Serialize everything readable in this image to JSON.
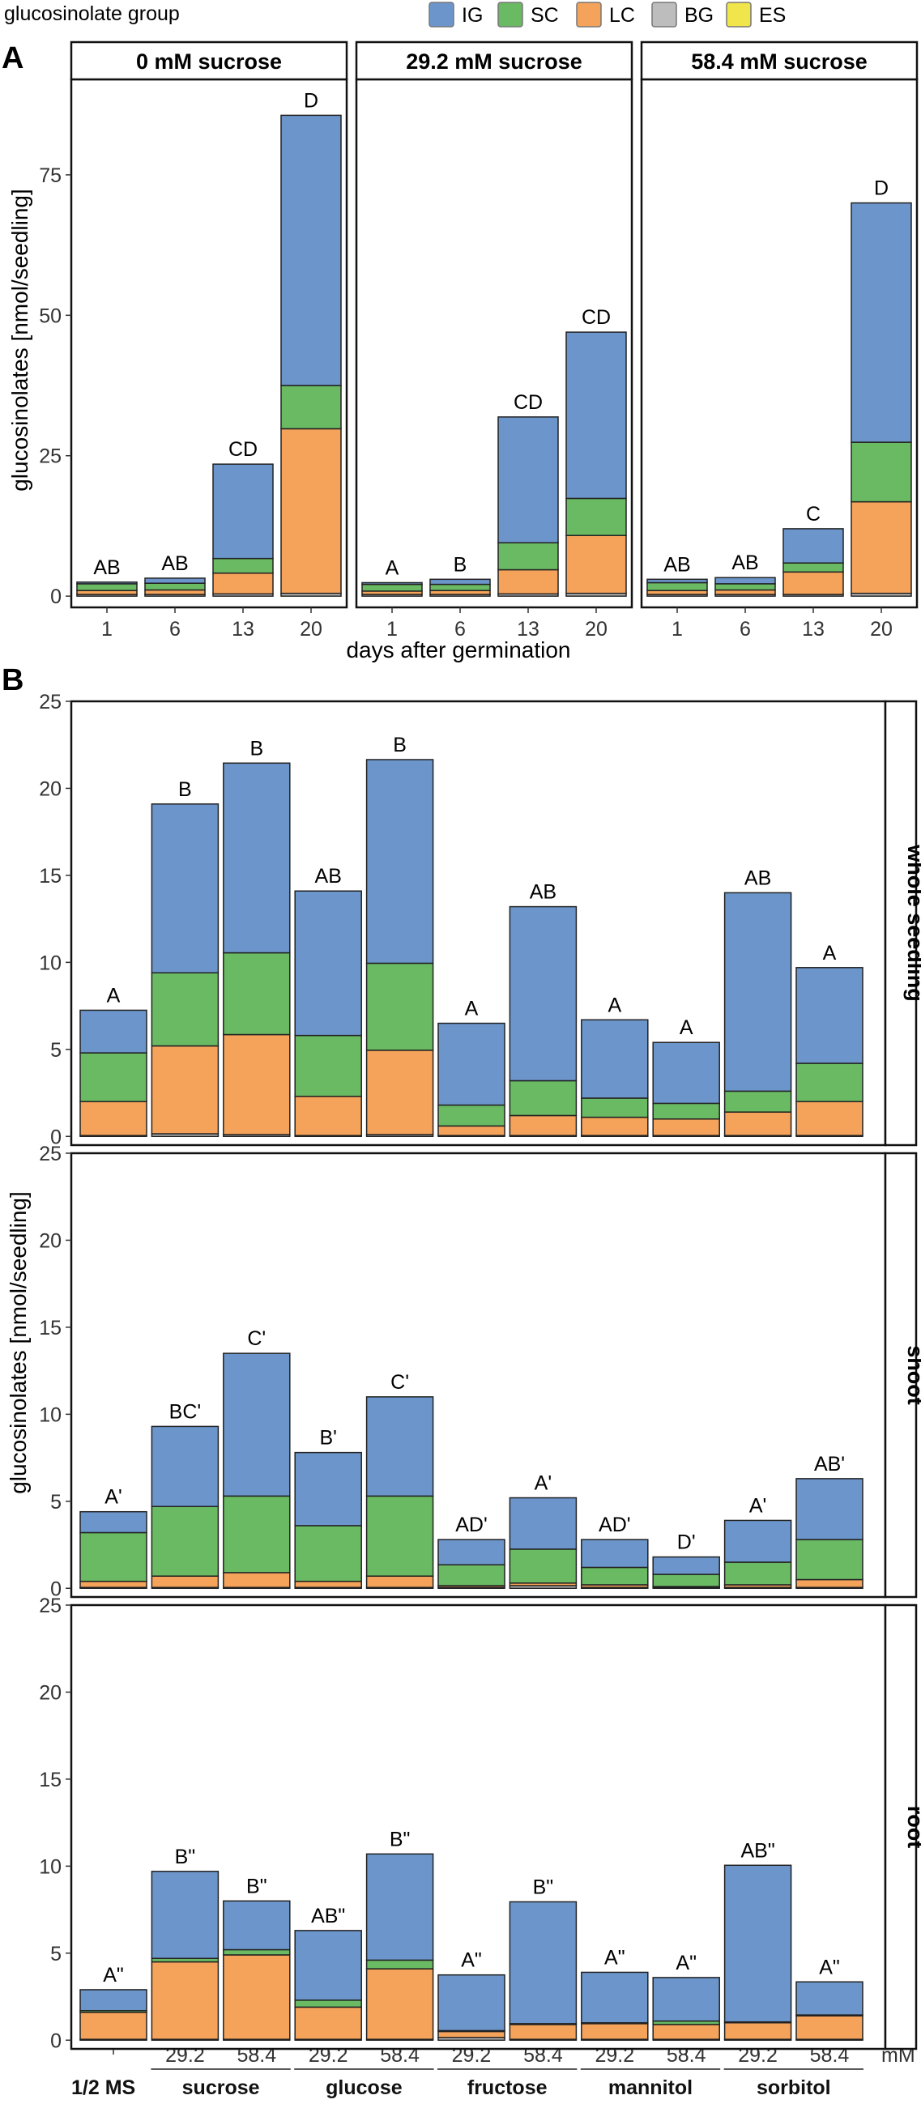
{
  "legend": {
    "title": "glucosinolate group",
    "items": [
      {
        "key": "IG",
        "label": "IG",
        "color": "#6C96CB"
      },
      {
        "key": "SC",
        "label": "SC",
        "color": "#6ABA63"
      },
      {
        "key": "LC",
        "label": "LC",
        "color": "#F5A35A"
      },
      {
        "key": "BG",
        "label": "BG",
        "color": "#BDBDBD"
      },
      {
        "key": "ES",
        "label": "ES",
        "color": "#F0E54A"
      }
    ]
  },
  "chart_data": [
    {
      "id": "A",
      "type": "bar",
      "stacked": true,
      "panel_label": "A",
      "ylabel": "glucosinolates [nmol/seedling]",
      "xlabel": "days after germination",
      "ylim": [
        -2,
        92
      ],
      "yticks": [
        0,
        25,
        50,
        75
      ],
      "facets": [
        {
          "title": "0 mM sucrose",
          "categories": [
            "1",
            "6",
            "13",
            "20"
          ],
          "series": [
            {
              "name": "BG",
              "values": [
                0.3,
                0.3,
                0.4,
                0.5
              ]
            },
            {
              "name": "LC",
              "values": [
                0.7,
                0.8,
                3.7,
                29.3
              ]
            },
            {
              "name": "SC",
              "values": [
                1.2,
                1.2,
                2.6,
                7.7
              ]
            },
            {
              "name": "IG",
              "values": [
                0.3,
                0.9,
                16.8,
                48.1
              ]
            }
          ],
          "letters": [
            "AB",
            "AB",
            "CD",
            "D"
          ]
        },
        {
          "title": "29.2 mM sucrose",
          "categories": [
            "1",
            "6",
            "13",
            "20"
          ],
          "series": [
            {
              "name": "BG",
              "values": [
                0.3,
                0.3,
                0.4,
                0.5
              ]
            },
            {
              "name": "LC",
              "values": [
                0.6,
                0.7,
                4.3,
                10.3
              ]
            },
            {
              "name": "SC",
              "values": [
                1.2,
                1.1,
                4.8,
                6.6
              ]
            },
            {
              "name": "IG",
              "values": [
                0.3,
                0.9,
                22.4,
                29.6
              ]
            }
          ],
          "letters": [
            "A",
            "B",
            "CD",
            "CD"
          ]
        },
        {
          "title": "58.4 mM sucrose",
          "categories": [
            "1",
            "6",
            "13",
            "20"
          ],
          "series": [
            {
              "name": "BG",
              "values": [
                0.3,
                0.3,
                0.3,
                0.5
              ]
            },
            {
              "name": "LC",
              "values": [
                0.7,
                0.8,
                4.0,
                16.3
              ]
            },
            {
              "name": "SC",
              "values": [
                1.4,
                1.1,
                1.6,
                10.6
              ]
            },
            {
              "name": "IG",
              "values": [
                0.6,
                1.1,
                6.1,
                42.6
              ]
            }
          ],
          "letters": [
            "AB",
            "AB",
            "C",
            "D"
          ]
        }
      ]
    },
    {
      "id": "B",
      "type": "bar",
      "stacked": true,
      "panel_label": "B",
      "ylabel": "glucosinolates [nmol/seedling]",
      "ylim": [
        -0.5,
        25
      ],
      "yticks": [
        0,
        5,
        10,
        15,
        20,
        25
      ],
      "categories": [
        "1/2 MS",
        "sucrose 29.2",
        "sucrose 58.4",
        "glucose 29.2",
        "glucose 58.4",
        "fructose 29.2",
        "fructose 58.4",
        "mannitol 29.2",
        "mannitol 58.4",
        "sorbitol 29.2",
        "sorbitol 58.4"
      ],
      "x_sublabels": [
        "",
        "29.2",
        "58.4",
        "29.2",
        "58.4",
        "29.2",
        "58.4",
        "29.2",
        "58.4",
        "29.2",
        "58.4"
      ],
      "x_unit": "mM",
      "x_groups": [
        "1/2 MS",
        "sucrose",
        "glucose",
        "fructose",
        "mannitol",
        "sorbitol"
      ],
      "facets": [
        {
          "title": "whole seedling",
          "series": [
            {
              "name": "BG",
              "values": [
                0.05,
                0.15,
                0.1,
                0.05,
                0.1,
                0.05,
                0.05,
                0.05,
                0.05,
                0.05,
                0.05
              ]
            },
            {
              "name": "LC",
              "values": [
                1.95,
                5.05,
                5.75,
                2.25,
                4.85,
                0.55,
                1.15,
                1.05,
                0.95,
                1.35,
                1.95
              ]
            },
            {
              "name": "SC",
              "values": [
                2.8,
                4.2,
                4.7,
                3.5,
                5.0,
                1.2,
                2.0,
                1.1,
                0.9,
                1.2,
                2.2
              ]
            },
            {
              "name": "IG",
              "values": [
                2.45,
                9.7,
                10.9,
                8.3,
                11.7,
                4.7,
                10.0,
                4.5,
                3.5,
                11.4,
                5.5
              ]
            }
          ],
          "letters": [
            "A",
            "B",
            "B",
            "AB",
            "B",
            "A",
            "AB",
            "A",
            "A",
            "AB",
            "A"
          ]
        },
        {
          "title": "shoot",
          "series": [
            {
              "name": "BG",
              "values": [
                0.05,
                0.05,
                0.05,
                0.05,
                0.05,
                0.05,
                0.15,
                0.05,
                0.05,
                0.05,
                0.05
              ]
            },
            {
              "name": "LC",
              "values": [
                0.35,
                0.65,
                0.85,
                0.35,
                0.65,
                0.1,
                0.15,
                0.15,
                0.05,
                0.15,
                0.45
              ]
            },
            {
              "name": "SC",
              "values": [
                2.8,
                4.0,
                4.4,
                3.2,
                4.6,
                1.2,
                1.95,
                1.0,
                0.7,
                1.3,
                2.3
              ]
            },
            {
              "name": "IG",
              "values": [
                1.2,
                4.6,
                8.2,
                4.2,
                5.7,
                1.45,
                2.95,
                1.6,
                1.0,
                2.4,
                3.5
              ]
            }
          ],
          "letters": [
            "A'",
            "BC'",
            "C'",
            "B'",
            "C'",
            "AD'",
            "A'",
            "AD'",
            "D'",
            "A'",
            "AB'"
          ]
        },
        {
          "title": "root",
          "series": [
            {
              "name": "BG",
              "values": [
                0.05,
                0.05,
                0.05,
                0.05,
                0.05,
                0.15,
                0.05,
                0.05,
                0.05,
                0.05,
                0.05
              ]
            },
            {
              "name": "LC",
              "values": [
                1.55,
                4.45,
                4.85,
                1.85,
                4.05,
                0.35,
                0.85,
                0.9,
                0.85,
                0.95,
                1.35
              ]
            },
            {
              "name": "SC",
              "values": [
                0.1,
                0.2,
                0.3,
                0.4,
                0.5,
                0.05,
                0.05,
                0.05,
                0.2,
                0.05,
                0.05
              ]
            },
            {
              "name": "IG",
              "values": [
                1.2,
                5.0,
                2.8,
                4.0,
                6.1,
                3.2,
                7.0,
                2.9,
                2.5,
                9.0,
                1.9
              ]
            }
          ],
          "letters": [
            "A\"",
            "B\"",
            "B\"",
            "AB\"",
            "B\"",
            "A\"",
            "B\"",
            "A\"",
            "A\"",
            "AB\"",
            "A\""
          ]
        }
      ]
    }
  ]
}
